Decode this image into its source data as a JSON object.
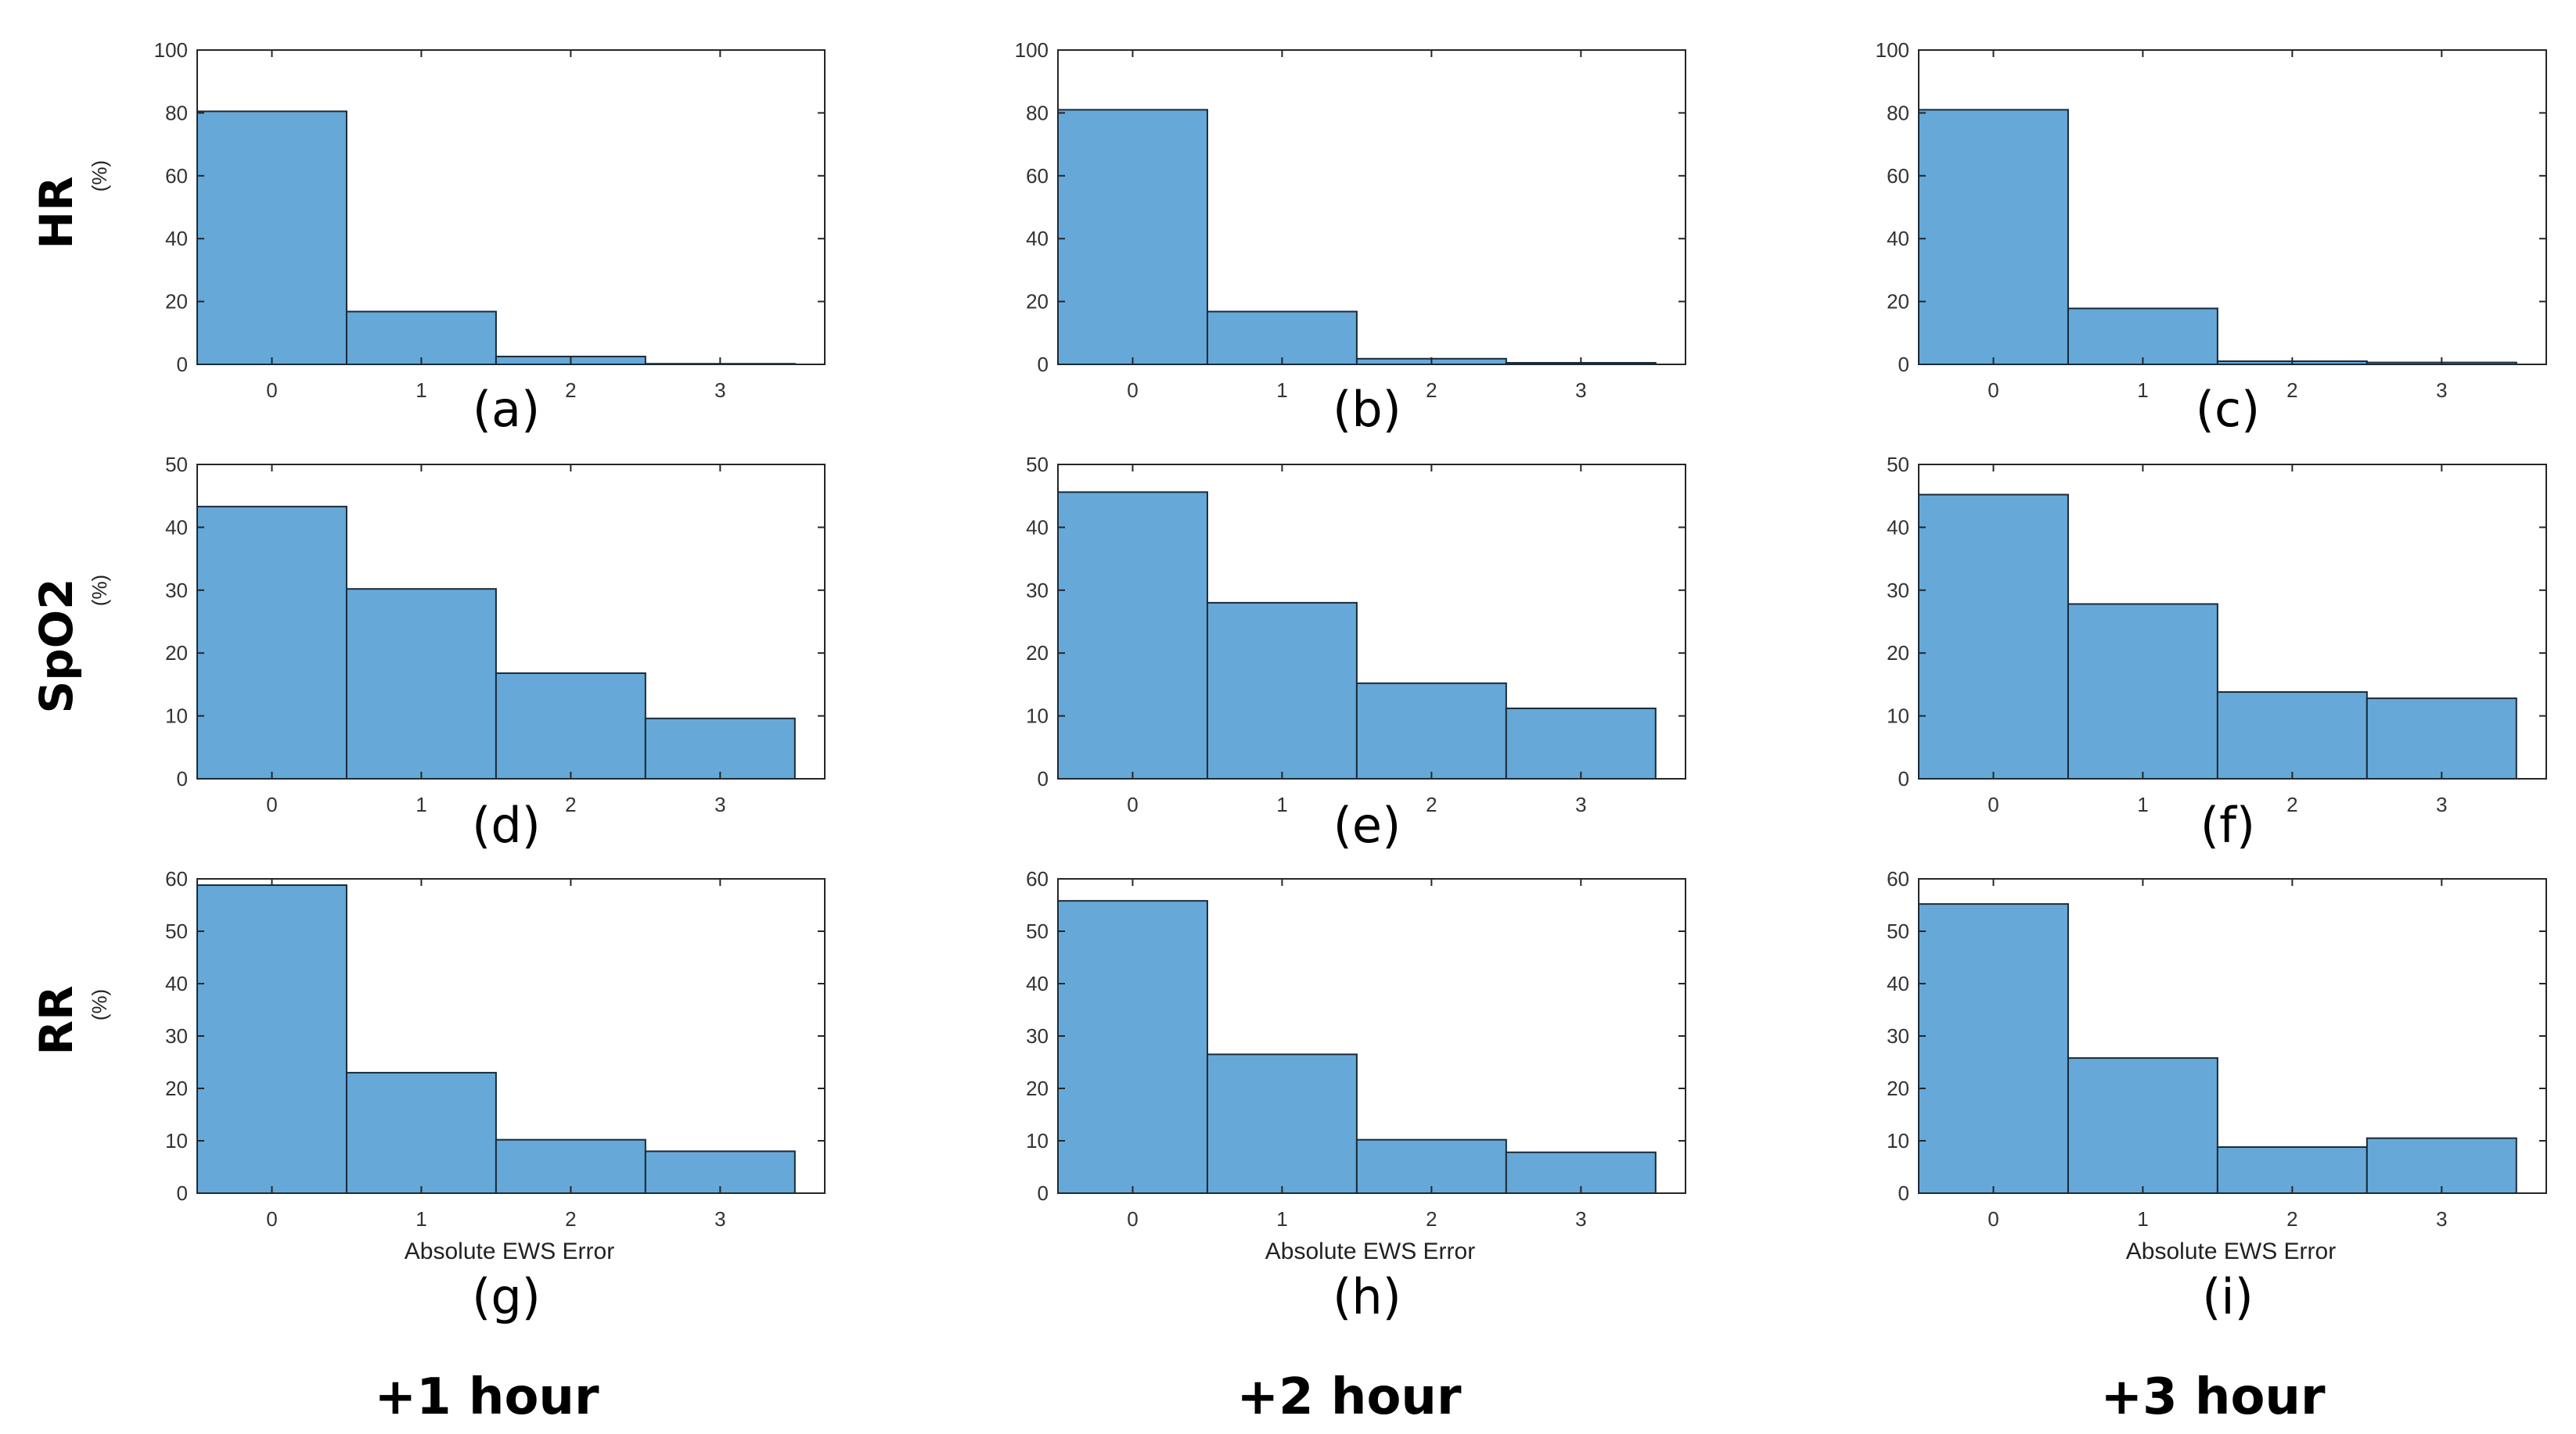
{
  "bar_color": "#66a9d8",
  "edge_color": "#1b2a38",
  "row_labels": [
    "HR",
    "SpO2",
    "RR"
  ],
  "col_labels": [
    "+1 hour",
    "+2 hour",
    "+3 hour"
  ],
  "chart_data": [
    {
      "type": "bar",
      "panel": "(a)",
      "row": "HR",
      "col": "+1 hour",
      "categories": [
        "0",
        "1",
        "2",
        "3"
      ],
      "values": [
        80.5,
        16.8,
        2.5,
        0.2
      ],
      "ylim": [
        0,
        100
      ],
      "yticks": [
        0,
        20,
        40,
        60,
        80,
        100
      ],
      "ylabel": "(%)",
      "xlabel": ""
    },
    {
      "type": "bar",
      "panel": "(b)",
      "row": "HR",
      "col": "+2 hour",
      "categories": [
        "0",
        "1",
        "2",
        "3"
      ],
      "values": [
        81,
        16.8,
        1.8,
        0.5
      ],
      "ylim": [
        0,
        100
      ],
      "yticks": [
        0,
        20,
        40,
        60,
        80,
        100
      ],
      "ylabel": "",
      "xlabel": ""
    },
    {
      "type": "bar",
      "panel": "(c)",
      "row": "HR",
      "col": "+3 hour",
      "categories": [
        "0",
        "1",
        "2",
        "3"
      ],
      "values": [
        81,
        17.8,
        1,
        0.6
      ],
      "ylim": [
        0,
        100
      ],
      "yticks": [
        0,
        20,
        40,
        60,
        80,
        100
      ],
      "ylabel": "",
      "xlabel": ""
    },
    {
      "type": "bar",
      "panel": "(d)",
      "row": "SpO2",
      "col": "+1 hour",
      "categories": [
        "0",
        "1",
        "2",
        "3"
      ],
      "values": [
        43.3,
        30.2,
        16.8,
        9.6
      ],
      "ylim": [
        0,
        50
      ],
      "yticks": [
        0,
        10,
        20,
        30,
        40,
        50
      ],
      "ylabel": "(%)",
      "xlabel": ""
    },
    {
      "type": "bar",
      "panel": "(e)",
      "row": "SpO2",
      "col": "+2 hour",
      "categories": [
        "0",
        "1",
        "2",
        "3"
      ],
      "values": [
        45.6,
        28,
        15.2,
        11.2
      ],
      "ylim": [
        0,
        50
      ],
      "yticks": [
        0,
        10,
        20,
        30,
        40,
        50
      ],
      "ylabel": "",
      "xlabel": ""
    },
    {
      "type": "bar",
      "panel": "(f)",
      "row": "SpO2",
      "col": "+3 hour",
      "categories": [
        "0",
        "1",
        "2",
        "3"
      ],
      "values": [
        45.2,
        27.8,
        13.8,
        12.8
      ],
      "ylim": [
        0,
        50
      ],
      "yticks": [
        0,
        10,
        20,
        30,
        40,
        50
      ],
      "ylabel": "",
      "xlabel": ""
    },
    {
      "type": "bar",
      "panel": "(g)",
      "row": "RR",
      "col": "+1 hour",
      "categories": [
        "0",
        "1",
        "2",
        "3"
      ],
      "values": [
        58.8,
        23,
        10.2,
        8
      ],
      "ylim": [
        0,
        60
      ],
      "yticks": [
        0,
        10,
        20,
        30,
        40,
        50,
        60
      ],
      "ylabel": "(%)",
      "xlabel": "Absolute EWS Error"
    },
    {
      "type": "bar",
      "panel": "(h)",
      "row": "RR",
      "col": "+2 hour",
      "categories": [
        "0",
        "1",
        "2",
        "3"
      ],
      "values": [
        55.8,
        26.5,
        10.2,
        7.8
      ],
      "ylim": [
        0,
        60
      ],
      "yticks": [
        0,
        10,
        20,
        30,
        40,
        50,
        60
      ],
      "ylabel": "",
      "xlabel": "Absolute EWS Error"
    },
    {
      "type": "bar",
      "panel": "(i)",
      "row": "RR",
      "col": "+3 hour",
      "categories": [
        "0",
        "1",
        "2",
        "3"
      ],
      "values": [
        55.2,
        25.8,
        8.8,
        10.5
      ],
      "ylim": [
        0,
        60
      ],
      "yticks": [
        0,
        10,
        20,
        30,
        40,
        50,
        60
      ],
      "ylabel": "",
      "xlabel": "Absolute EWS Error"
    }
  ]
}
